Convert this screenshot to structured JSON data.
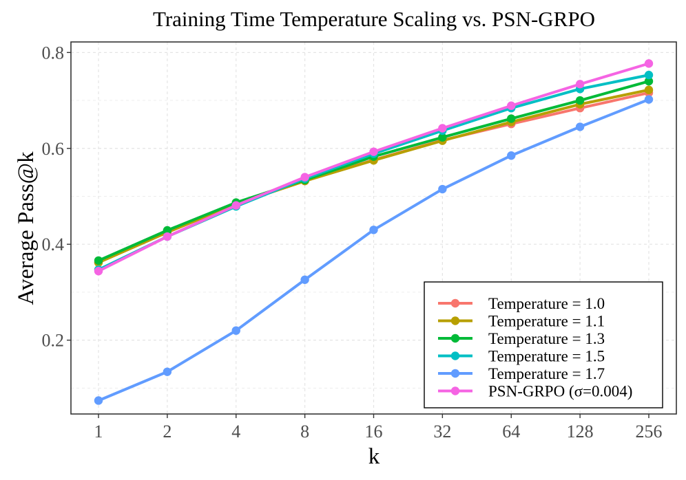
{
  "chart_data": {
    "type": "line",
    "title": "Training Time Temperature Scaling vs. PSN-GRPO",
    "xlabel": "k",
    "ylabel": "Average Pass@k",
    "categories": [
      "1",
      "2",
      "4",
      "8",
      "16",
      "32",
      "64",
      "128",
      "256"
    ],
    "ylim": [
      0.046,
      0.822
    ],
    "yticks": [
      0.2,
      0.4,
      0.6,
      0.8
    ],
    "ytick_labels": [
      "0.2",
      "0.4",
      "0.6",
      "0.8"
    ],
    "grid": true,
    "legend_position": "bottom-right",
    "series": [
      {
        "name": "Temperature = 1.0",
        "color": "#F8766D",
        "values": [
          0.362,
          0.425,
          0.484,
          0.532,
          0.576,
          0.617,
          0.651,
          0.684,
          0.716
        ]
      },
      {
        "name": "Temperature = 1.1",
        "color": "#B79F00",
        "values": [
          0.362,
          0.425,
          0.484,
          0.532,
          0.575,
          0.616,
          0.655,
          0.692,
          0.722
        ]
      },
      {
        "name": "Temperature = 1.3",
        "color": "#00BA38",
        "values": [
          0.366,
          0.429,
          0.487,
          0.534,
          0.583,
          0.623,
          0.662,
          0.7,
          0.74
        ]
      },
      {
        "name": "Temperature = 1.5",
        "color": "#00BFC4",
        "values": [
          0.347,
          0.416,
          0.479,
          0.537,
          0.589,
          0.637,
          0.684,
          0.724,
          0.753
        ]
      },
      {
        "name": "Temperature = 1.7",
        "color": "#619CFF",
        "values": [
          0.074,
          0.134,
          0.22,
          0.326,
          0.43,
          0.515,
          0.585,
          0.645,
          0.702
        ]
      },
      {
        "name": "PSN-GRPO (σ=0.004)",
        "color": "#F564E3",
        "values": [
          0.344,
          0.416,
          0.481,
          0.54,
          0.593,
          0.642,
          0.689,
          0.734,
          0.777
        ]
      }
    ]
  }
}
